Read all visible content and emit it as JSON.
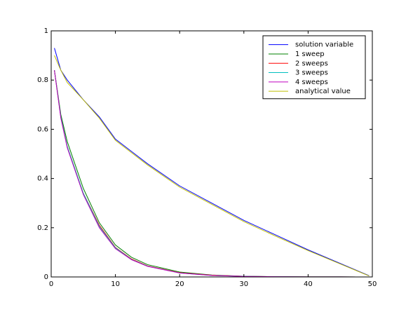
{
  "chart_data": {
    "type": "line",
    "x": [
      0.5,
      1.5,
      2.5,
      5,
      7.5,
      10,
      12.5,
      15,
      20,
      25,
      30,
      35,
      40,
      45,
      49.5
    ],
    "series": [
      {
        "name": "solution variable",
        "color": "#0000ff",
        "values": [
          0.93,
          0.84,
          0.8,
          0.72,
          0.65,
          0.56,
          0.51,
          0.46,
          0.37,
          0.3,
          0.23,
          0.17,
          0.11,
          0.055,
          0.005
        ]
      },
      {
        "name": "1 sweep",
        "color": "#008000",
        "values": [
          0.84,
          0.66,
          0.55,
          0.36,
          0.22,
          0.13,
          0.08,
          0.05,
          0.02,
          0.008,
          0.003,
          0.001,
          0.0005,
          0.0002,
          0.0001
        ]
      },
      {
        "name": "2 sweeps",
        "color": "#ff0000",
        "values": [
          0.84,
          0.65,
          0.53,
          0.34,
          0.21,
          0.12,
          0.073,
          0.045,
          0.017,
          0.007,
          0.0025,
          0.001,
          0.0004,
          0.0002,
          0.0001
        ]
      },
      {
        "name": "3 sweeps",
        "color": "#00bfbf",
        "values": [
          0.84,
          0.65,
          0.53,
          0.34,
          0.205,
          0.118,
          0.071,
          0.044,
          0.016,
          0.006,
          0.0024,
          0.001,
          0.0004,
          0.0002,
          0.0001
        ]
      },
      {
        "name": "4 sweeps",
        "color": "#bf00bf",
        "values": [
          0.84,
          0.645,
          0.525,
          0.335,
          0.2,
          0.115,
          0.07,
          0.043,
          0.016,
          0.006,
          0.0023,
          0.001,
          0.0004,
          0.0002,
          0.0001
        ]
      },
      {
        "name": "analytical value",
        "color": "#bfbf00",
        "values": [
          0.9,
          0.84,
          0.79,
          0.72,
          0.645,
          0.555,
          0.505,
          0.455,
          0.365,
          0.295,
          0.225,
          0.165,
          0.107,
          0.053,
          0.004
        ]
      }
    ],
    "xlim": [
      0,
      50
    ],
    "xticks": [
      0,
      10,
      20,
      30,
      40,
      50
    ],
    "ylim": [
      0,
      1
    ],
    "yticks": [
      0,
      0.2,
      0.4,
      0.6,
      0.8,
      1
    ],
    "grid": false,
    "legend": "upper right"
  }
}
